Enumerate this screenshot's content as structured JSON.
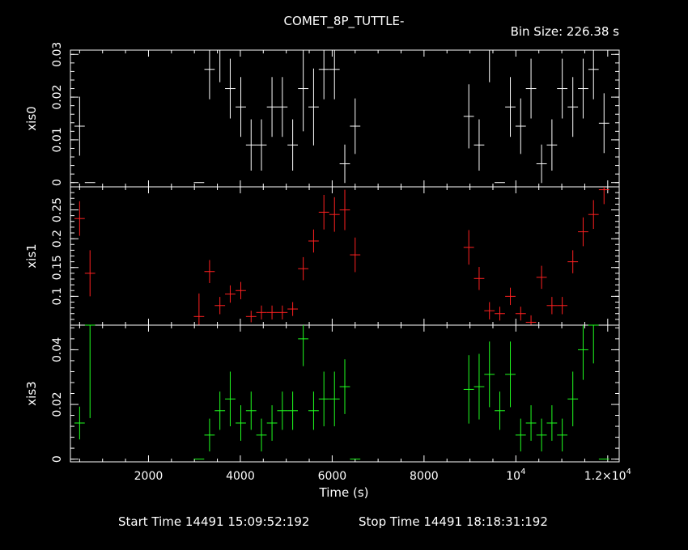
{
  "title": "COMET_8P_TUTTLE-",
  "bin_size_label": "Bin Size: 226.38 s",
  "start_time_label": "Start Time 14491 15:09:52:192",
  "stop_time_label": "Stop Time 14491 18:18:31:192",
  "colors": {
    "xis0": "#ffffff",
    "xis1": "#ff2020",
    "xis3": "#20ff20",
    "frame": "#ffffff",
    "background": "#000000"
  },
  "chart_data": {
    "type": "scatter",
    "xlabel": "Time (s)",
    "xlim": [
      300,
      12250
    ],
    "x_ticks": [
      {
        "value": 2000,
        "label": "2000"
      },
      {
        "value": 4000,
        "label": "4000"
      },
      {
        "value": 6000,
        "label": "6000"
      },
      {
        "value": 8000,
        "label": "8000"
      },
      {
        "value": 10000,
        "label": "10",
        "sup": "4"
      },
      {
        "value": 12000,
        "label": "1.2×10",
        "sup": "4"
      }
    ],
    "x_halfwidth": 113,
    "series": [
      {
        "name": "xis0",
        "ylim": [
          -0.001,
          0.031
        ],
        "y_ticks": [
          0,
          0.01,
          0.02,
          0.03
        ],
        "y_tick_labels": [
          "0",
          "0.01",
          "0.02",
          "0.03"
        ],
        "points": [
          [
            500,
            0.0132,
            0.0069
          ],
          [
            727,
            0,
            0
          ],
          [
            3100,
            0,
            0
          ],
          [
            3330,
            0.0265,
            0.007
          ],
          [
            3555,
            0.031,
            0.0075
          ],
          [
            3780,
            0.022,
            0.007
          ],
          [
            4010,
            0.0177,
            0.007
          ],
          [
            4235,
            0.0088,
            0.006
          ],
          [
            4460,
            0.0088,
            0.006
          ],
          [
            4690,
            0.0177,
            0.007
          ],
          [
            4915,
            0.0177,
            0.007
          ],
          [
            5140,
            0.0088,
            0.006
          ],
          [
            5370,
            0.022,
            0.01
          ],
          [
            5595,
            0.0177,
            0.009
          ],
          [
            5820,
            0.0265,
            0.007
          ],
          [
            6050,
            0.0265,
            0.007
          ],
          [
            6275,
            0.0044,
            0.0045
          ],
          [
            6500,
            0.0132,
            0.0065
          ],
          [
            8975,
            0.0155,
            0.0075
          ],
          [
            9200,
            0.0088,
            0.006
          ],
          [
            9425,
            0.031,
            0.0075
          ],
          [
            9650,
            0,
            0
          ],
          [
            9880,
            0.0177,
            0.007
          ],
          [
            10105,
            0.0132,
            0.0065
          ],
          [
            10330,
            0.022,
            0.007
          ],
          [
            10560,
            0.0044,
            0.0045
          ],
          [
            10785,
            0.0088,
            0.006
          ],
          [
            11010,
            0.022,
            0.007
          ],
          [
            11240,
            0.0177,
            0.007
          ],
          [
            11465,
            0.022,
            0.007
          ],
          [
            11690,
            0.0265,
            0.007
          ],
          [
            11920,
            0.0139,
            0.007
          ]
        ]
      },
      {
        "name": "xis1",
        "ylim": [
          0.05,
          0.29
        ],
        "y_ticks": [
          0.1,
          0.15,
          0.2,
          0.25
        ],
        "y_tick_labels": [
          "0.1",
          "0.15",
          "0.2",
          "0.25"
        ],
        "points": [
          [
            500,
            0.235,
            0.03
          ],
          [
            727,
            0.14,
            0.04
          ],
          [
            3100,
            0.065,
            0.04
          ],
          [
            3330,
            0.143,
            0.02
          ],
          [
            3555,
            0.084,
            0.015
          ],
          [
            3780,
            0.104,
            0.015
          ],
          [
            4010,
            0.11,
            0.015
          ],
          [
            4235,
            0.065,
            0.01
          ],
          [
            4460,
            0.072,
            0.012
          ],
          [
            4690,
            0.072,
            0.012
          ],
          [
            4915,
            0.072,
            0.012
          ],
          [
            5140,
            0.078,
            0.012
          ],
          [
            5370,
            0.148,
            0.02
          ],
          [
            5595,
            0.196,
            0.02
          ],
          [
            5820,
            0.246,
            0.03
          ],
          [
            6050,
            0.242,
            0.03
          ],
          [
            6275,
            0.25,
            0.035
          ],
          [
            6500,
            0.172,
            0.03
          ],
          [
            8975,
            0.185,
            0.03
          ],
          [
            9200,
            0.131,
            0.02
          ],
          [
            9425,
            0.075,
            0.015
          ],
          [
            9650,
            0.07,
            0.012
          ],
          [
            9880,
            0.1,
            0.015
          ],
          [
            10105,
            0.07,
            0.012
          ],
          [
            10330,
            0.055,
            0.012
          ],
          [
            10560,
            0.133,
            0.02
          ],
          [
            10785,
            0.084,
            0.015
          ],
          [
            11010,
            0.084,
            0.015
          ],
          [
            11240,
            0.16,
            0.02
          ],
          [
            11465,
            0.212,
            0.025
          ],
          [
            11690,
            0.242,
            0.025
          ],
          [
            11920,
            0.285,
            0.025
          ]
        ]
      },
      {
        "name": "xis3",
        "ylim": [
          -0.001,
          0.049
        ],
        "y_ticks": [
          0,
          0.02,
          0.04
        ],
        "y_tick_labels": [
          "0",
          "0.02",
          "0.04"
        ],
        "points": [
          [
            500,
            0.0132,
            0.006
          ],
          [
            727,
            0.049,
            0.034
          ],
          [
            3100,
            0,
            0
          ],
          [
            3330,
            0.0088,
            0.006
          ],
          [
            3555,
            0.0177,
            0.007
          ],
          [
            3780,
            0.022,
            0.01
          ],
          [
            4010,
            0.0132,
            0.0065
          ],
          [
            4235,
            0.0177,
            0.007
          ],
          [
            4460,
            0.0088,
            0.006
          ],
          [
            4690,
            0.0132,
            0.0065
          ],
          [
            4915,
            0.0177,
            0.007
          ],
          [
            5140,
            0.0177,
            0.007
          ],
          [
            5370,
            0.044,
            0.01
          ],
          [
            5595,
            0.0177,
            0.007
          ],
          [
            5820,
            0.022,
            0.01
          ],
          [
            6050,
            0.022,
            0.01
          ],
          [
            6275,
            0.0265,
            0.01
          ],
          [
            6500,
            0,
            0
          ],
          [
            8975,
            0.0255,
            0.0125
          ],
          [
            9200,
            0.0265,
            0.012
          ],
          [
            9425,
            0.031,
            0.012
          ],
          [
            9650,
            0.0177,
            0.007
          ],
          [
            9880,
            0.031,
            0.012
          ],
          [
            10105,
            0.0088,
            0.006
          ],
          [
            10330,
            0.0132,
            0.0065
          ],
          [
            10560,
            0.0088,
            0.006
          ],
          [
            10785,
            0.0132,
            0.0065
          ],
          [
            11010,
            0.0088,
            0.006
          ],
          [
            11240,
            0.022,
            0.01
          ],
          [
            11465,
            0.04,
            0.011
          ],
          [
            11690,
            0.049,
            0.014
          ],
          [
            11920,
            0,
            0
          ]
        ]
      }
    ]
  }
}
